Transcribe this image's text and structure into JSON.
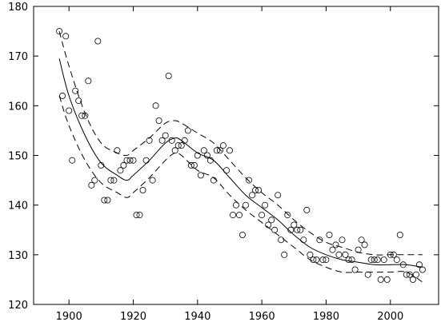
{
  "chart_data": {
    "type": "scatter",
    "title": "",
    "xlabel": "",
    "ylabel": "",
    "xlim": [
      1889,
      2015
    ],
    "ylim": [
      120,
      180
    ],
    "xticks": [
      1900,
      1920,
      1940,
      1960,
      1980,
      2000
    ],
    "yticks": [
      120,
      130,
      140,
      150,
      160,
      170,
      180
    ],
    "grid": false,
    "legend": "none",
    "series": [
      {
        "kind": "points",
        "marker": "open-circle",
        "x": [
          1897,
          1898,
          1899,
          1900,
          1901,
          1902,
          1903,
          1904,
          1905,
          1906,
          1907,
          1908,
          1909,
          1910,
          1911,
          1912,
          1913,
          1914,
          1915,
          1916,
          1917,
          1918,
          1919,
          1920,
          1921,
          1922,
          1923,
          1924,
          1925,
          1926,
          1927,
          1928,
          1929,
          1930,
          1931,
          1932,
          1933,
          1934,
          1935,
          1936,
          1937,
          1938,
          1939,
          1940,
          1941,
          1942,
          1943,
          1944,
          1945,
          1946,
          1947,
          1948,
          1949,
          1950,
          1951,
          1952,
          1953,
          1954,
          1955,
          1956,
          1957,
          1958,
          1959,
          1960,
          1961,
          1962,
          1963,
          1964,
          1965,
          1966,
          1967,
          1968,
          1969,
          1970,
          1971,
          1972,
          1973,
          1974,
          1975,
          1976,
          1977,
          1978,
          1979,
          1980,
          1981,
          1982,
          1983,
          1984,
          1985,
          1986,
          1987,
          1988,
          1989,
          1990,
          1991,
          1992,
          1993,
          1994,
          1995,
          1996,
          1997,
          1998,
          1999,
          2000,
          2001,
          2002,
          2003,
          2004,
          2005,
          2006,
          2007,
          2008,
          2009,
          2010
        ],
        "y": [
          175,
          162,
          174,
          159,
          149,
          163,
          161,
          158,
          158,
          165,
          144,
          145,
          173,
          148,
          141,
          141,
          145,
          145,
          151,
          147,
          148,
          149,
          149,
          149,
          138,
          138,
          143,
          149,
          153,
          145,
          160,
          157,
          153,
          154,
          166,
          153,
          151,
          152,
          152,
          153,
          155,
          148,
          148,
          150,
          146,
          151,
          150,
          149,
          145,
          151,
          151,
          152,
          147,
          151,
          138,
          140,
          138,
          134,
          140,
          145,
          142,
          143,
          143,
          138,
          140,
          136,
          137,
          135,
          142,
          133,
          130,
          138,
          135,
          136,
          135,
          135,
          133,
          139,
          130,
          129,
          129,
          133,
          129,
          129,
          134,
          131,
          132,
          130,
          133,
          130,
          129,
          129,
          127,
          131,
          133,
          132,
          126,
          129,
          129,
          129,
          125,
          129,
          125,
          130,
          130,
          129,
          134,
          128,
          126,
          126,
          125,
          126,
          128,
          127
        ],
        "note": "values estimated from axes"
      },
      {
        "kind": "line",
        "style": "solid",
        "x": [
          1897,
          1900,
          1905,
          1910,
          1915,
          1918,
          1920,
          1925,
          1930,
          1933,
          1935,
          1940,
          1945,
          1950,
          1955,
          1960,
          1965,
          1970,
          1975,
          1980,
          1985,
          1990,
          1995,
          2000,
          2005,
          2010
        ],
        "y": [
          169.5,
          162,
          154,
          148.5,
          146,
          145,
          146,
          149,
          152.5,
          153.5,
          153,
          150.5,
          149,
          145.5,
          142,
          139.5,
          137,
          134,
          131.5,
          130,
          129,
          128.5,
          128,
          128,
          128,
          127.5
        ]
      },
      {
        "kind": "line",
        "style": "dashed",
        "x": [
          1897,
          1900,
          1905,
          1910,
          1915,
          1918,
          1920,
          1925,
          1930,
          1933,
          1935,
          1940,
          1945,
          1950,
          1955,
          1960,
          1965,
          1970,
          1975,
          1980,
          1985,
          1990,
          1995,
          2000,
          2005,
          2010
        ],
        "y": [
          175,
          168,
          158.5,
          152.5,
          150.5,
          150,
          151,
          153.5,
          156.5,
          157,
          156.5,
          154.5,
          152.5,
          149,
          145.5,
          142.5,
          140,
          137,
          134.5,
          132.5,
          131.5,
          130.5,
          130,
          130,
          130,
          130
        ]
      },
      {
        "kind": "line",
        "style": "dashed",
        "x": [
          1897,
          1900,
          1905,
          1910,
          1915,
          1918,
          1920,
          1925,
          1930,
          1933,
          1935,
          1940,
          1945,
          1950,
          1955,
          1960,
          1965,
          1970,
          1975,
          1980,
          1985,
          1990,
          1995,
          2000,
          2005,
          2010
        ],
        "y": [
          162,
          156,
          149,
          144.5,
          142.5,
          141.5,
          142.5,
          145.5,
          149,
          150.5,
          150,
          147,
          145.5,
          142,
          139,
          136.5,
          134,
          131.5,
          129,
          127.5,
          126.5,
          126.5,
          126.5,
          126.5,
          126.5,
          124.5
        ]
      }
    ]
  }
}
